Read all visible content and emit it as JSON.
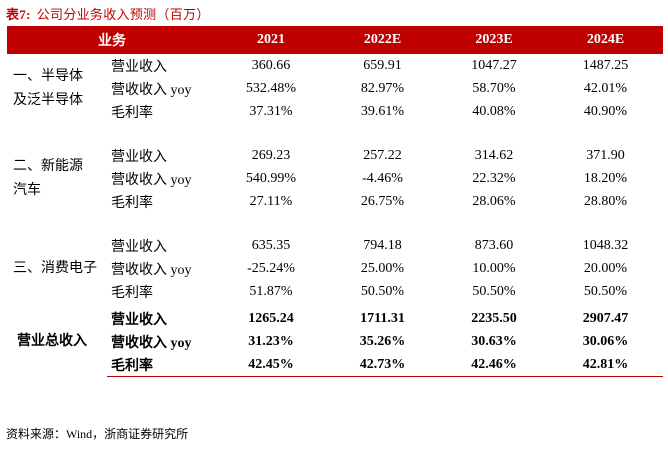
{
  "title": {
    "label": "表7:",
    "text": "公司分业务收入预测（百万）"
  },
  "table": {
    "header": [
      "业务",
      "",
      "2021",
      "2022E",
      "2023E",
      "2024E"
    ],
    "groups": [
      {
        "name": "一、半导体\n及泛半导体",
        "rows": [
          {
            "metric": "营业收入",
            "values": [
              "360.66",
              "659.91",
              "1047.27",
              "1487.25"
            ]
          },
          {
            "metric": "营收收入 yoy",
            "values": [
              "532.48%",
              "82.97%",
              "58.70%",
              "42.01%"
            ]
          },
          {
            "metric": "毛利率",
            "values": [
              "37.31%",
              "39.61%",
              "40.08%",
              "40.90%"
            ]
          }
        ]
      },
      {
        "name": "二、新能源\n汽车",
        "rows": [
          {
            "metric": "营业收入",
            "values": [
              "269.23",
              "257.22",
              "314.62",
              "371.90"
            ]
          },
          {
            "metric": "营收收入 yoy",
            "values": [
              "540.99%",
              "-4.46%",
              "22.32%",
              "18.20%"
            ]
          },
          {
            "metric": "毛利率",
            "values": [
              "27.11%",
              "26.75%",
              "28.06%",
              "28.80%"
            ]
          }
        ]
      },
      {
        "name": "三、消费电子",
        "rows": [
          {
            "metric": "营业收入",
            "values": [
              "635.35",
              "794.18",
              "873.60",
              "1048.32"
            ]
          },
          {
            "metric": "营收收入 yoy",
            "values": [
              "-25.24%",
              "25.00%",
              "10.00%",
              "20.00%"
            ]
          },
          {
            "metric": "毛利率",
            "values": [
              "51.87%",
              "50.50%",
              "50.50%",
              "50.50%"
            ]
          }
        ]
      },
      {
        "name": "营业总收入",
        "rows": [
          {
            "metric": "营业收入",
            "values": [
              "1265.24",
              "1711.31",
              "2235.50",
              "2907.47"
            ]
          },
          {
            "metric": "营收收入 yoy",
            "values": [
              "31.23%",
              "35.26%",
              "30.63%",
              "30.06%"
            ]
          },
          {
            "metric": "毛利率",
            "values": [
              "42.45%",
              "42.73%",
              "42.46%",
              "42.81%"
            ]
          }
        ]
      }
    ]
  },
  "source": "资料来源：Wind，浙商证券研究所",
  "colors": {
    "accent": "#c00000",
    "header_text": "#ffffff"
  }
}
